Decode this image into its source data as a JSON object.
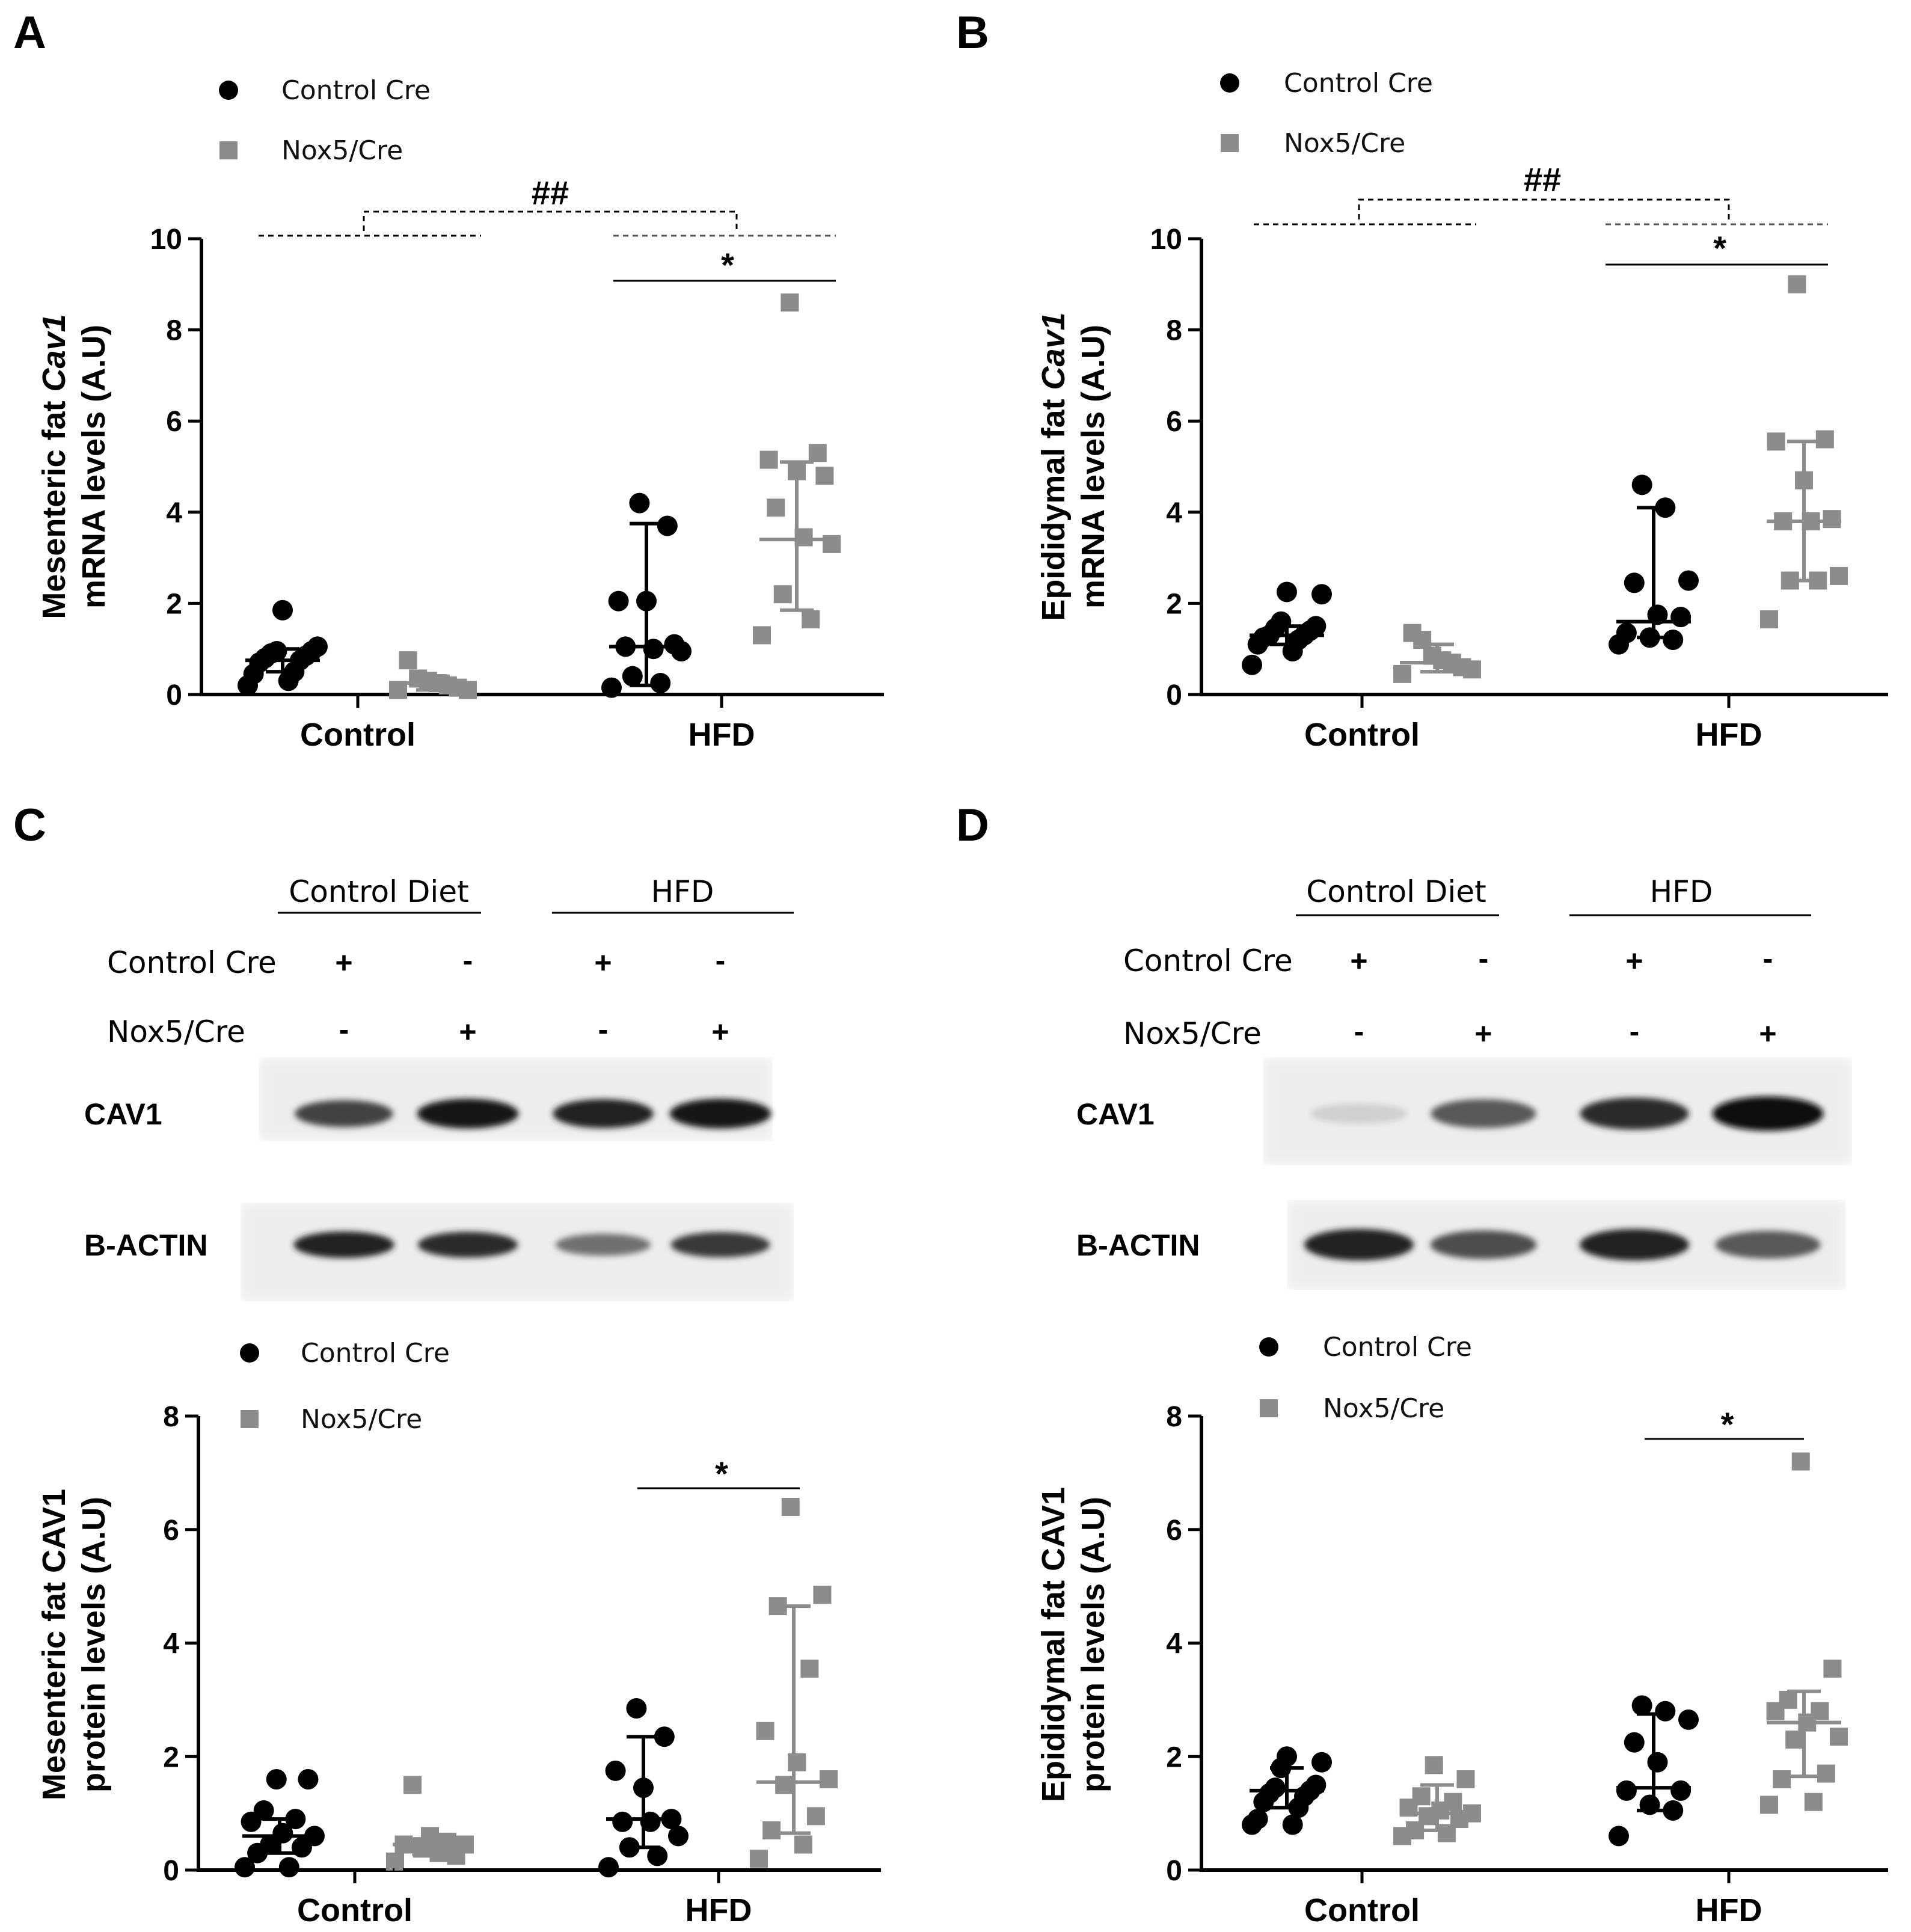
{
  "figure": {
    "colors": {
      "control_cre": "#000000",
      "nox5_cre": "#8c8c8c"
    }
  },
  "chart_data": [
    {
      "panel": "A",
      "type": "scatter",
      "categories": [
        "Control",
        "HFD"
      ],
      "ylabel_line1_prefix": "Mesenteric fat ",
      "ylabel_line1_italic": "Cav1",
      "ylabel_line2": "mRNA levels (A.U)",
      "ylim": [
        0,
        10
      ],
      "yticks": [
        "0",
        "2",
        "4",
        "6",
        "8",
        "10"
      ],
      "legend": [
        "Control Cre",
        "Nox5/Cre"
      ],
      "legend_position": "top-left",
      "series": [
        {
          "name": "Control Cre",
          "points": [
            {
              "category": "Control",
              "values": [
                1.85,
                1.05,
                0.95,
                0.95,
                0.9,
                0.85,
                0.8,
                0.75,
                0.7,
                0.5,
                0.45,
                0.3,
                0.2
              ]
            },
            {
              "category": "HFD",
              "values": [
                4.2,
                3.7,
                2.05,
                2.05,
                1.1,
                1.05,
                1.0,
                0.95,
                0.4,
                0.25,
                0.15
              ]
            }
          ],
          "summary": [
            {
              "category": "Control",
              "median": 0.75,
              "low": 0.5,
              "high": 1.0
            },
            {
              "category": "HFD",
              "median": 1.05,
              "low": 0.2,
              "high": 3.75
            }
          ]
        },
        {
          "name": "Nox5/Cre",
          "points": [
            {
              "category": "Control",
              "values": [
                0.75,
                0.35,
                0.3,
                0.25,
                0.2,
                0.15,
                0.1,
                0.1
              ]
            },
            {
              "category": "HFD",
              "values": [
                8.6,
                5.3,
                5.15,
                4.9,
                4.8,
                4.1,
                3.45,
                3.3,
                2.2,
                1.65,
                1.3
              ]
            }
          ],
          "summary": [
            {
              "category": "Control",
              "median": 0.25,
              "low": 0.1,
              "high": 0.4
            },
            {
              "category": "HFD",
              "median": 3.4,
              "low": 1.85,
              "high": 5.1
            }
          ]
        }
      ],
      "annotations": [
        {
          "text": "##",
          "between": "Control vs HFD"
        },
        {
          "text": "*",
          "between": "HFD Control Cre vs Nox5/Cre"
        }
      ]
    },
    {
      "panel": "B",
      "type": "scatter",
      "categories": [
        "Control",
        "HFD"
      ],
      "ylabel_line1_prefix": "Epididymal fat ",
      "ylabel_line1_italic": "Cav1",
      "ylabel_line2": "mRNA levels (A.U)",
      "ylim": [
        0,
        10
      ],
      "yticks": [
        "0",
        "2",
        "4",
        "6",
        "8",
        "10"
      ],
      "legend": [
        "Control Cre",
        "Nox5/Cre"
      ],
      "legend_position": "top-left",
      "series": [
        {
          "name": "Control Cre",
          "points": [
            {
              "category": "Control",
              "values": [
                2.25,
                2.2,
                1.6,
                1.5,
                1.45,
                1.4,
                1.3,
                1.3,
                1.25,
                1.2,
                1.1,
                0.95,
                0.65
              ]
            },
            {
              "category": "HFD",
              "values": [
                4.6,
                4.1,
                2.5,
                2.45,
                1.75,
                1.7,
                1.35,
                1.25,
                1.2,
                1.1
              ]
            }
          ],
          "summary": [
            {
              "category": "Control",
              "median": 1.3,
              "low": 1.1,
              "high": 1.5
            },
            {
              "category": "HFD",
              "median": 1.6,
              "low": 1.25,
              "high": 4.1
            }
          ]
        },
        {
          "name": "Nox5/Cre",
          "points": [
            {
              "category": "Control",
              "values": [
                1.35,
                1.2,
                0.85,
                0.75,
                0.7,
                0.6,
                0.55,
                0.45
              ]
            },
            {
              "category": "HFD",
              "values": [
                9.0,
                5.6,
                5.55,
                4.7,
                3.85,
                3.8,
                3.8,
                2.6,
                2.5,
                2.5,
                1.65
              ]
            }
          ],
          "summary": [
            {
              "category": "Control",
              "median": 0.7,
              "low": 0.5,
              "high": 1.1
            },
            {
              "category": "HFD",
              "median": 3.8,
              "low": 2.5,
              "high": 5.55
            }
          ]
        }
      ],
      "annotations": [
        {
          "text": "##",
          "between": "Control vs HFD"
        },
        {
          "text": "*",
          "between": "HFD Control Cre vs Nox5/Cre"
        }
      ]
    },
    {
      "panel": "C",
      "type": "scatter",
      "categories": [
        "Control",
        "HFD"
      ],
      "ylabel_line1": "Mesenteric fat CAV1",
      "ylabel_line2": "protein levels (A.U)",
      "ylim": [
        0,
        8
      ],
      "yticks": [
        "0",
        "2",
        "4",
        "6",
        "8"
      ],
      "legend": [
        "Control Cre",
        "Nox5/Cre"
      ],
      "legend_position": "top-left",
      "series": [
        {
          "name": "Control Cre",
          "points": [
            {
              "category": "Control",
              "values": [
                1.6,
                1.6,
                1.05,
                0.9,
                0.85,
                0.65,
                0.6,
                0.45,
                0.4,
                0.3,
                0.05,
                0.05
              ]
            },
            {
              "category": "HFD",
              "values": [
                2.85,
                2.35,
                1.75,
                1.45,
                0.9,
                0.85,
                0.85,
                0.6,
                0.4,
                0.25,
                0.05
              ]
            }
          ],
          "summary": [
            {
              "category": "Control",
              "median": 0.6,
              "low": 0.3,
              "high": 0.9
            },
            {
              "category": "HFD",
              "median": 0.9,
              "low": 0.4,
              "high": 2.35
            }
          ]
        },
        {
          "name": "Nox5/Cre",
          "points": [
            {
              "category": "Control",
              "values": [
                1.5,
                0.6,
                0.5,
                0.45,
                0.45,
                0.4,
                0.3,
                0.25,
                0.15
              ]
            },
            {
              "category": "HFD",
              "values": [
                6.4,
                4.85,
                4.65,
                3.55,
                2.45,
                1.9,
                1.6,
                1.5,
                0.95,
                0.7,
                0.45,
                0.2
              ]
            }
          ],
          "summary": [
            {
              "category": "Control",
              "median": 0.45,
              "low": 0.25,
              "high": 0.55
            },
            {
              "category": "HFD",
              "median": 1.55,
              "low": 0.65,
              "high": 4.65
            }
          ]
        }
      ],
      "annotations": [
        {
          "text": "*",
          "between": "HFD Control Cre vs Nox5/Cre"
        }
      ]
    },
    {
      "panel": "D",
      "type": "scatter",
      "categories": [
        "Control",
        "HFD"
      ],
      "ylabel_line1": "Epididymal fat CAV1",
      "ylabel_line2": "protein levels (A.U)",
      "ylim": [
        0,
        8
      ],
      "yticks": [
        "0",
        "2",
        "4",
        "6",
        "8"
      ],
      "legend": [
        "Control Cre",
        "Nox5/Cre"
      ],
      "legend_position": "top-left",
      "series": [
        {
          "name": "Control Cre",
          "points": [
            {
              "category": "Control",
              "values": [
                2.0,
                1.9,
                1.8,
                1.5,
                1.45,
                1.4,
                1.35,
                1.3,
                1.2,
                1.1,
                0.9,
                0.8,
                0.8
              ]
            },
            {
              "category": "HFD",
              "values": [
                2.9,
                2.8,
                2.65,
                2.25,
                1.9,
                1.4,
                1.4,
                1.15,
                1.05,
                0.6
              ]
            }
          ],
          "summary": [
            {
              "category": "Control",
              "median": 1.4,
              "low": 1.1,
              "high": 1.8
            },
            {
              "category": "HFD",
              "median": 1.45,
              "low": 1.05,
              "high": 2.75
            }
          ]
        },
        {
          "name": "Nox5/Cre",
          "points": [
            {
              "category": "Control",
              "values": [
                1.85,
                1.6,
                1.3,
                1.2,
                1.1,
                1.05,
                1.0,
                0.95,
                0.9,
                0.7,
                0.65,
                0.6
              ]
            },
            {
              "category": "HFD",
              "values": [
                7.2,
                3.55,
                3.0,
                2.8,
                2.8,
                2.6,
                2.35,
                2.3,
                1.7,
                1.6,
                1.2,
                1.15
              ]
            }
          ],
          "summary": [
            {
              "category": "Control",
              "median": 1.0,
              "low": 0.7,
              "high": 1.5
            },
            {
              "category": "HFD",
              "median": 2.6,
              "low": 1.65,
              "high": 3.15
            }
          ]
        }
      ],
      "annotations": [
        {
          "text": "*",
          "between": "HFD Control Cre vs Nox5/Cre"
        }
      ]
    }
  ],
  "blots": [
    {
      "panel": "C",
      "headers": [
        "Control Diet",
        "HFD"
      ],
      "rows": [
        {
          "label": "Control Cre",
          "signs": [
            "+",
            "-",
            "+",
            "-"
          ]
        },
        {
          "label": "Nox5/Cre",
          "signs": [
            "-",
            "+",
            "-",
            "+"
          ]
        }
      ],
      "bands": [
        {
          "label": "CAV1",
          "intensities": [
            0.75,
            0.95,
            0.9,
            0.95
          ]
        },
        {
          "label": "B-ACTIN",
          "intensities": [
            0.9,
            0.85,
            0.55,
            0.8
          ]
        }
      ]
    },
    {
      "panel": "D",
      "headers": [
        "Control Diet",
        "HFD"
      ],
      "rows": [
        {
          "label": "Control Cre",
          "signs": [
            "+",
            "-",
            "+",
            "-"
          ]
        },
        {
          "label": "Nox5/Cre",
          "signs": [
            "-",
            "+",
            "-",
            "+"
          ]
        }
      ],
      "bands": [
        {
          "label": "CAV1",
          "intensities": [
            0.12,
            0.65,
            0.85,
            1.0
          ]
        },
        {
          "label": "B-ACTIN",
          "intensities": [
            0.9,
            0.7,
            0.9,
            0.65
          ]
        }
      ]
    }
  ]
}
